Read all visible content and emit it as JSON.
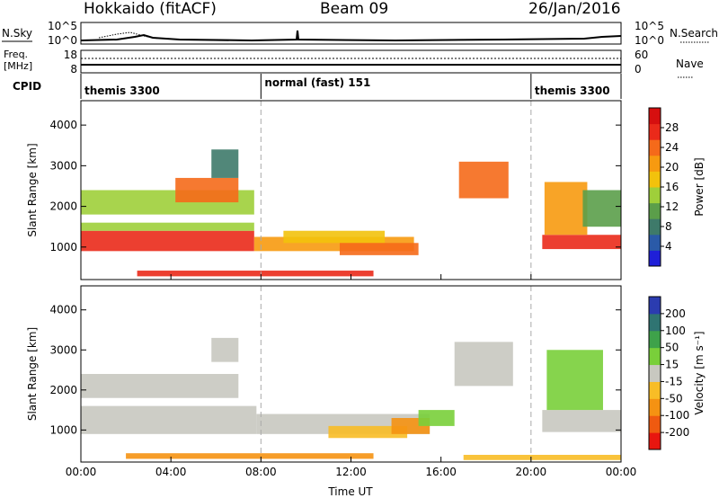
{
  "header": {
    "station": "Hokkaido (fitACF)",
    "beam": "Beam 09",
    "date": "26/Jan/2016"
  },
  "top_panels": {
    "nsky_label": "N.Sky",
    "nsearch_label": "N.Search",
    "left_ticks": [
      "10^5",
      "10^0"
    ],
    "right_ticks": [
      "10^5",
      "10^0"
    ],
    "freq_label": [
      "Freq.",
      "[MHz]"
    ],
    "freq_ticks": [
      "18",
      "8"
    ],
    "nave_label": "Nave",
    "nave_ticks": [
      "60",
      "0"
    ],
    "cpid_label": "CPID"
  },
  "cpid_segments": [
    {
      "label": "themis 3300",
      "start_hour": 0
    },
    {
      "label": "normal (fast) 151",
      "start_hour": 8
    },
    {
      "label": "themis 3300",
      "start_hour": 20
    }
  ],
  "chart_data": [
    {
      "type": "heatmap",
      "title": "Power",
      "ylabel": "Slant Range [km]",
      "xlabel": "",
      "x_ticks": [
        "00:00",
        "04:00",
        "08:00",
        "12:00",
        "16:00",
        "20:00",
        "00:00"
      ],
      "y_ticks": [
        "1000",
        "2000",
        "3000",
        "4000"
      ],
      "ylim": [
        200,
        4600
      ],
      "xlim_hours": [
        0,
        24
      ],
      "colorbar_label": "Power [dB]",
      "colorbar_ticks": [
        "4",
        "8",
        "12",
        "16",
        "20",
        "24",
        "28"
      ],
      "colorbar_range": [
        0,
        32
      ],
      "colorbar_colors": [
        "#1f1fd8",
        "#2a5aa8",
        "#3e7a6a",
        "#5b9e4a",
        "#9fcf3a",
        "#f2c20c",
        "#f79a10",
        "#f56a1a",
        "#ea2a1a",
        "#d60f0f"
      ],
      "regions": [
        {
          "x": [
            0.0,
            7.7
          ],
          "y": [
            900,
            1400
          ],
          "value": 28
        },
        {
          "x": [
            0.0,
            7.7
          ],
          "y": [
            1400,
            1600
          ],
          "value": 14
        },
        {
          "x": [
            0.0,
            7.7
          ],
          "y": [
            1800,
            2400
          ],
          "value": 13
        },
        {
          "x": [
            4.2,
            7.0
          ],
          "y": [
            2100,
            2700
          ],
          "value": 24
        },
        {
          "x": [
            5.8,
            7.0
          ],
          "y": [
            2700,
            3400
          ],
          "value": 8
        },
        {
          "x": [
            7.7,
            14.8
          ],
          "y": [
            900,
            1250
          ],
          "value": 22
        },
        {
          "x": [
            9.0,
            13.5
          ],
          "y": [
            1100,
            1400
          ],
          "value": 16
        },
        {
          "x": [
            11.5,
            15.0
          ],
          "y": [
            800,
            1100
          ],
          "value": 24
        },
        {
          "x": [
            2.5,
            13.0
          ],
          "y": [
            280,
            420
          ],
          "value": 26
        },
        {
          "x": [
            16.8,
            19.0
          ],
          "y": [
            2200,
            3100
          ],
          "value": 25
        },
        {
          "x": [
            20.5,
            24.0
          ],
          "y": [
            950,
            1300
          ],
          "value": 28
        },
        {
          "x": [
            20.6,
            22.5
          ],
          "y": [
            1300,
            2600
          ],
          "value": 22
        },
        {
          "x": [
            22.3,
            24.0
          ],
          "y": [
            1500,
            2400
          ],
          "value": 12
        }
      ]
    },
    {
      "type": "heatmap",
      "title": "Velocity",
      "ylabel": "Slant Range [km]",
      "xlabel": "Time UT",
      "x_ticks": [
        "00:00",
        "04:00",
        "08:00",
        "12:00",
        "16:00",
        "20:00",
        "00:00"
      ],
      "y_ticks": [
        "1000",
        "2000",
        "3000",
        "4000"
      ],
      "ylim": [
        200,
        4600
      ],
      "xlim_hours": [
        0,
        24
      ],
      "colorbar_label": "Velocity [m s⁻¹]",
      "colorbar_ticks": [
        "-200",
        "-100",
        "-50",
        "-15",
        "15",
        "50",
        "100",
        "200"
      ],
      "colorbar_colors": [
        "#e8160f",
        "#ef5a10",
        "#f59212",
        "#f8bd26",
        "#c8c8c0",
        "#79cf3a",
        "#3ea24a",
        "#2f7472",
        "#2b3cb0"
      ],
      "regions": [
        {
          "x": [
            0.0,
            7.8
          ],
          "y": [
            900,
            1600
          ],
          "value": 0
        },
        {
          "x": [
            0.0,
            7.0
          ],
          "y": [
            1800,
            2400
          ],
          "value": 0
        },
        {
          "x": [
            5.8,
            7.0
          ],
          "y": [
            2700,
            3300
          ],
          "value": 0
        },
        {
          "x": [
            7.8,
            15.5
          ],
          "y": [
            900,
            1400
          ],
          "value": 0
        },
        {
          "x": [
            11.0,
            14.5
          ],
          "y": [
            800,
            1100
          ],
          "value": -45
        },
        {
          "x": [
            13.8,
            15.5
          ],
          "y": [
            900,
            1300
          ],
          "value": -90
        },
        {
          "x": [
            15.0,
            16.6
          ],
          "y": [
            1100,
            1500
          ],
          "value": 50
        },
        {
          "x": [
            16.6,
            19.2
          ],
          "y": [
            2100,
            3200
          ],
          "value": 0
        },
        {
          "x": [
            20.5,
            24.0
          ],
          "y": [
            950,
            1500
          ],
          "value": 0
        },
        {
          "x": [
            20.7,
            23.2
          ],
          "y": [
            1500,
            3000
          ],
          "value": 40
        },
        {
          "x": [
            2.0,
            13.0
          ],
          "y": [
            280,
            420
          ],
          "value": -60
        },
        {
          "x": [
            17.0,
            24.0
          ],
          "y": [
            250,
            380
          ],
          "value": -45
        }
      ]
    }
  ]
}
